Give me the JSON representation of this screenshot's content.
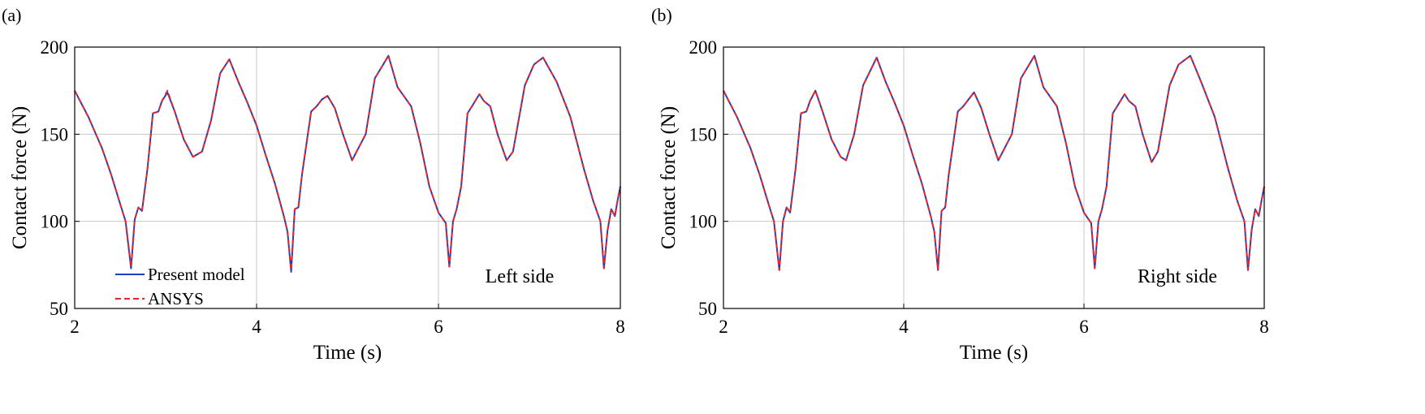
{
  "chart_data": [
    {
      "type": "line",
      "panel_label": "(a)",
      "annotation": "Left side",
      "xlabel": "Time (s)",
      "ylabel": "Contact force (N)",
      "xlim": [
        2,
        8
      ],
      "ylim": [
        50,
        200
      ],
      "xticks": [
        2,
        4,
        6,
        8
      ],
      "yticks": [
        50,
        100,
        150,
        200
      ],
      "grid": true,
      "legend": "bottom-left",
      "series": [
        {
          "name": "Present model",
          "color": "#1f3fbf",
          "style": "solid",
          "x": [
            2.0,
            2.15,
            2.3,
            2.4,
            2.5,
            2.56,
            2.62,
            2.66,
            2.7,
            2.74,
            2.8,
            2.86,
            2.92,
            2.96,
            3.02,
            3.1,
            3.2,
            3.3,
            3.4,
            3.5,
            3.6,
            3.7,
            3.8,
            3.9,
            4.0,
            4.1,
            4.2,
            4.3,
            4.34,
            4.38,
            4.42,
            4.46,
            4.5,
            4.6,
            4.66,
            4.72,
            4.78,
            4.86,
            4.95,
            5.05,
            5.2,
            5.3,
            5.45,
            5.55,
            5.7,
            5.8,
            5.9,
            6.0,
            6.08,
            6.12,
            6.16,
            6.2,
            6.25,
            6.32,
            6.38,
            6.45,
            6.5,
            6.57,
            6.65,
            6.75,
            6.82,
            6.95,
            7.05,
            7.15,
            7.3,
            7.45,
            7.6,
            7.7,
            7.78,
            7.82,
            7.86,
            7.9,
            7.94,
            7.97,
            8.0
          ],
          "y": [
            175,
            160,
            142,
            127,
            110,
            100,
            73,
            101,
            108,
            106,
            130,
            162,
            163,
            169,
            174,
            163,
            147,
            137,
            140,
            158,
            185,
            193,
            180,
            168,
            155,
            138,
            122,
            103,
            94,
            71,
            107,
            108,
            127,
            163,
            166,
            170,
            172,
            165,
            150,
            135,
            150,
            182,
            195,
            177,
            166,
            145,
            120,
            105,
            99,
            74,
            100,
            107,
            120,
            162,
            167,
            173,
            169,
            166,
            150,
            135,
            140,
            178,
            190,
            194,
            180,
            160,
            130,
            112,
            100,
            73,
            95,
            107,
            103,
            112,
            120
          ]
        },
        {
          "name": "ANSYS",
          "color": "#e8262a",
          "style": "dashed",
          "x": [
            2.0,
            2.15,
            2.3,
            2.4,
            2.5,
            2.56,
            2.62,
            2.66,
            2.7,
            2.74,
            2.8,
            2.86,
            2.92,
            2.96,
            3.02,
            3.1,
            3.2,
            3.3,
            3.4,
            3.5,
            3.6,
            3.7,
            3.8,
            3.9,
            4.0,
            4.1,
            4.2,
            4.3,
            4.34,
            4.38,
            4.42,
            4.46,
            4.5,
            4.6,
            4.66,
            4.72,
            4.78,
            4.86,
            4.95,
            5.05,
            5.2,
            5.3,
            5.45,
            5.55,
            5.7,
            5.8,
            5.9,
            6.0,
            6.08,
            6.12,
            6.16,
            6.2,
            6.25,
            6.32,
            6.38,
            6.45,
            6.5,
            6.57,
            6.65,
            6.75,
            6.82,
            6.95,
            7.05,
            7.15,
            7.3,
            7.45,
            7.6,
            7.7,
            7.78,
            7.82,
            7.86,
            7.9,
            7.94,
            7.97,
            8.0
          ],
          "y": [
            175,
            160,
            142,
            127,
            110,
            100,
            74,
            101,
            108,
            106,
            130,
            162,
            163,
            169,
            175,
            163,
            147,
            137,
            140,
            158,
            185,
            193,
            180,
            168,
            155,
            138,
            122,
            103,
            94,
            72,
            107,
            108,
            127,
            163,
            166,
            170,
            172,
            165,
            150,
            135,
            150,
            182,
            195,
            177,
            166,
            145,
            120,
            105,
            99,
            74,
            100,
            107,
            120,
            162,
            167,
            173,
            169,
            166,
            150,
            135,
            140,
            178,
            190,
            194,
            180,
            160,
            130,
            112,
            100,
            73,
            95,
            107,
            103,
            112,
            120
          ]
        }
      ]
    },
    {
      "type": "line",
      "panel_label": "(b)",
      "annotation": "Right side",
      "xlabel": "Time (s)",
      "ylabel": "Contact force (N)",
      "xlim": [
        2,
        8
      ],
      "ylim": [
        50,
        200
      ],
      "xticks": [
        2,
        4,
        6,
        8
      ],
      "yticks": [
        50,
        100,
        150,
        200
      ],
      "grid": true,
      "legend": "none",
      "series": [
        {
          "name": "Present model",
          "color": "#1f3fbf",
          "style": "solid",
          "x": [
            2.0,
            2.15,
            2.3,
            2.4,
            2.5,
            2.56,
            2.62,
            2.66,
            2.7,
            2.74,
            2.8,
            2.86,
            2.92,
            2.96,
            3.02,
            3.1,
            3.2,
            3.3,
            3.36,
            3.45,
            3.55,
            3.7,
            3.8,
            3.9,
            4.0,
            4.1,
            4.2,
            4.3,
            4.34,
            4.38,
            4.42,
            4.46,
            4.5,
            4.6,
            4.66,
            4.72,
            4.78,
            4.86,
            4.95,
            5.05,
            5.2,
            5.3,
            5.45,
            5.55,
            5.7,
            5.8,
            5.9,
            6.0,
            6.08,
            6.12,
            6.16,
            6.2,
            6.25,
            6.32,
            6.38,
            6.45,
            6.5,
            6.57,
            6.65,
            6.75,
            6.82,
            6.95,
            7.05,
            7.18,
            7.3,
            7.45,
            7.6,
            7.7,
            7.78,
            7.82,
            7.86,
            7.9,
            7.94,
            7.97,
            8.0
          ],
          "y": [
            175,
            160,
            142,
            127,
            110,
            100,
            72,
            100,
            108,
            105,
            130,
            162,
            163,
            169,
            175,
            163,
            147,
            137,
            135,
            150,
            178,
            194,
            180,
            168,
            155,
            138,
            122,
            103,
            94,
            72,
            106,
            108,
            127,
            163,
            166,
            170,
            174,
            165,
            150,
            135,
            150,
            182,
            195,
            177,
            166,
            145,
            120,
            105,
            99,
            73,
            100,
            107,
            120,
            162,
            167,
            173,
            169,
            166,
            150,
            134,
            140,
            178,
            190,
            195,
            180,
            160,
            130,
            112,
            100,
            72,
            95,
            107,
            103,
            112,
            120
          ]
        },
        {
          "name": "ANSYS",
          "color": "#e8262a",
          "style": "dashed",
          "x": [
            2.0,
            2.15,
            2.3,
            2.4,
            2.5,
            2.56,
            2.62,
            2.66,
            2.7,
            2.74,
            2.8,
            2.86,
            2.92,
            2.96,
            3.02,
            3.1,
            3.2,
            3.3,
            3.36,
            3.45,
            3.55,
            3.7,
            3.8,
            3.9,
            4.0,
            4.1,
            4.2,
            4.3,
            4.34,
            4.38,
            4.42,
            4.46,
            4.5,
            4.6,
            4.66,
            4.72,
            4.78,
            4.86,
            4.95,
            5.05,
            5.2,
            5.3,
            5.45,
            5.55,
            5.7,
            5.8,
            5.9,
            6.0,
            6.08,
            6.12,
            6.16,
            6.2,
            6.25,
            6.32,
            6.38,
            6.45,
            6.5,
            6.57,
            6.65,
            6.75,
            6.82,
            6.95,
            7.05,
            7.18,
            7.3,
            7.45,
            7.6,
            7.7,
            7.78,
            7.82,
            7.86,
            7.9,
            7.94,
            7.97,
            8.0
          ],
          "y": [
            175,
            160,
            142,
            127,
            110,
            100,
            72,
            100,
            108,
            105,
            130,
            162,
            163,
            169,
            175,
            163,
            147,
            137,
            135,
            150,
            178,
            194,
            180,
            168,
            155,
            138,
            122,
            103,
            94,
            72,
            106,
            108,
            127,
            163,
            166,
            170,
            174,
            165,
            150,
            135,
            150,
            182,
            195,
            177,
            166,
            145,
            120,
            105,
            99,
            73,
            100,
            107,
            120,
            162,
            167,
            173,
            169,
            166,
            150,
            134,
            140,
            178,
            190,
            195,
            180,
            160,
            130,
            112,
            100,
            72,
            95,
            107,
            103,
            112,
            120
          ]
        }
      ]
    }
  ]
}
